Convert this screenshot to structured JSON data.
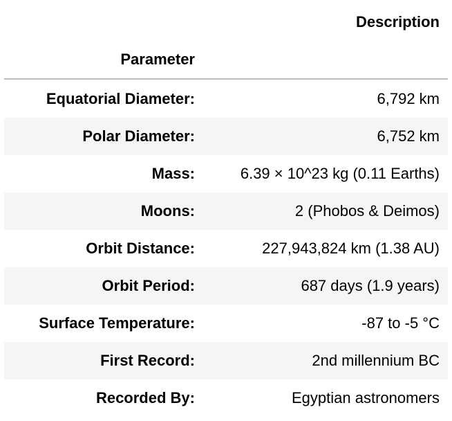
{
  "table": {
    "columns": {
      "description": "Description",
      "parameter": "Parameter"
    },
    "rows": [
      {
        "parameter": "Equatorial Diameter:",
        "value": "6,792 km"
      },
      {
        "parameter": "Polar Diameter:",
        "value": "6,752 km"
      },
      {
        "parameter": "Mass:",
        "value": "6.39 × 10^23 kg (0.11 Earths)"
      },
      {
        "parameter": "Moons:",
        "value": "2 (Phobos & Deimos)"
      },
      {
        "parameter": "Orbit Distance:",
        "value": "227,943,824 km (1.38 AU)"
      },
      {
        "parameter": "Orbit Period:",
        "value": "687 days (1.9 years)"
      },
      {
        "parameter": "Surface Temperature:",
        "value": "-87 to -5 °C"
      },
      {
        "parameter": "First Record:",
        "value": "2nd millennium BC"
      },
      {
        "parameter": "Recorded By:",
        "value": "Egyptian astronomers"
      }
    ]
  },
  "colors": {
    "row_alt": "#f5f5f5",
    "rule": "#bdbdbd"
  }
}
